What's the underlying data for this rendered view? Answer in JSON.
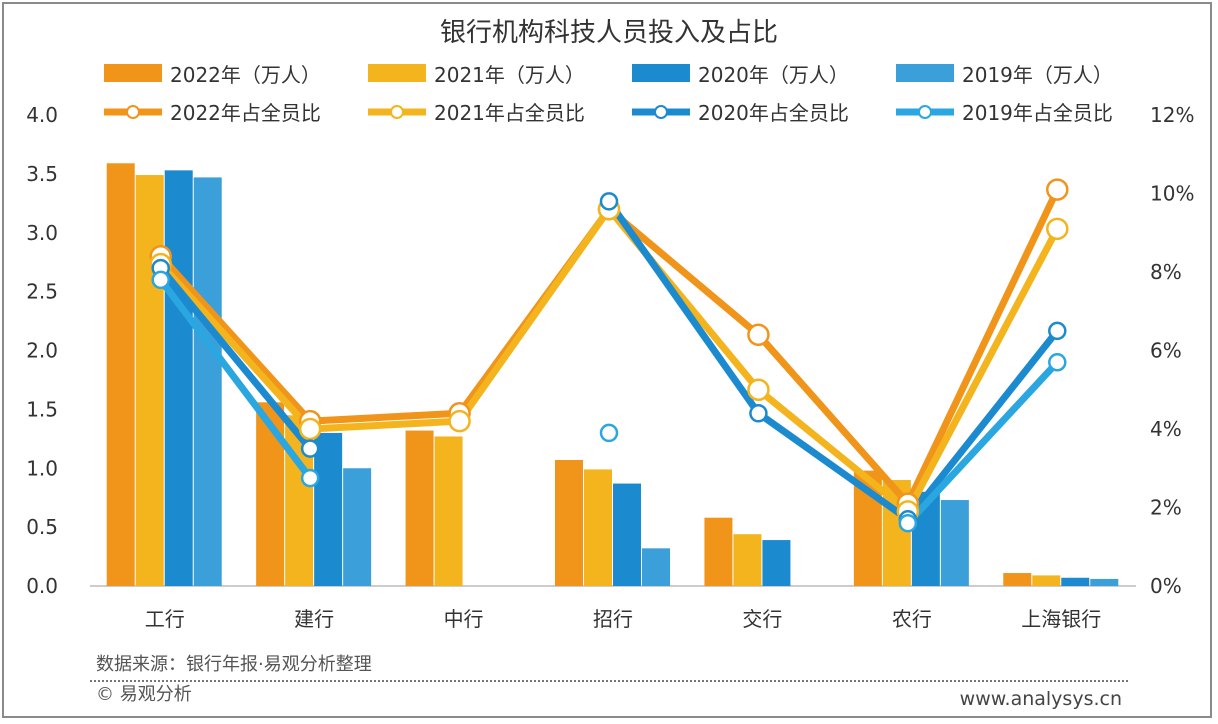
{
  "chart_data": {
    "type": "bar+line",
    "title": "银行机构科技人员投入及占比",
    "categories": [
      "工行",
      "建行",
      "中行",
      "招行",
      "交行",
      "农行",
      "上海银行"
    ],
    "y_left": {
      "range": [
        0,
        4.0
      ],
      "ticks": [
        "0.0",
        "0.5",
        "1.0",
        "1.5",
        "2.0",
        "2.5",
        "3.0",
        "3.5",
        "4.0"
      ]
    },
    "y_right": {
      "range": [
        0,
        12
      ],
      "ticks": [
        "0%",
        "2%",
        "4%",
        "6%",
        "8%",
        "10%",
        "12%"
      ]
    },
    "grid": false,
    "legend_position": "top",
    "bar_series": [
      {
        "name": "2022年（万人）",
        "color": "#F0941A",
        "values": [
          3.59,
          1.56,
          1.32,
          1.07,
          0.58,
          0.98,
          0.11
        ]
      },
      {
        "name": "2021年（万人）",
        "color": "#F3B41E",
        "values": [
          3.49,
          1.45,
          1.27,
          0.99,
          0.44,
          0.9,
          0.09
        ]
      },
      {
        "name": "2020年（万人）",
        "color": "#1C8ACF",
        "values": [
          3.53,
          1.3,
          null,
          0.87,
          0.39,
          0.8,
          0.07
        ]
      },
      {
        "name": "2019年（万人）",
        "color": "#3B9FDA",
        "values": [
          3.47,
          1.0,
          null,
          0.32,
          null,
          0.73,
          0.06
        ]
      }
    ],
    "line_series": [
      {
        "name": "2022年占全员比",
        "color": "#F0941A",
        "values": [
          8.4,
          4.2,
          4.4,
          9.6,
          6.4,
          2.1,
          10.1
        ]
      },
      {
        "name": "2021年占全员比",
        "color": "#F3B41E",
        "values": [
          8.2,
          4.0,
          4.2,
          9.6,
          5.0,
          1.9,
          9.1
        ]
      },
      {
        "name": "2020年占全员比",
        "color": "#1C8ACF",
        "values": [
          8.1,
          3.5,
          null,
          9.8,
          4.4,
          1.7,
          6.5
        ]
      },
      {
        "name": "2019年占全员比",
        "color": "#2AA6E0",
        "values": [
          7.8,
          2.75,
          null,
          3.9,
          null,
          1.6,
          5.7
        ]
      }
    ]
  },
  "footer": {
    "source": "数据来源：银行年报·易观分析整理",
    "copyright": "© 易观分析",
    "website": "www.analysys.cn"
  }
}
